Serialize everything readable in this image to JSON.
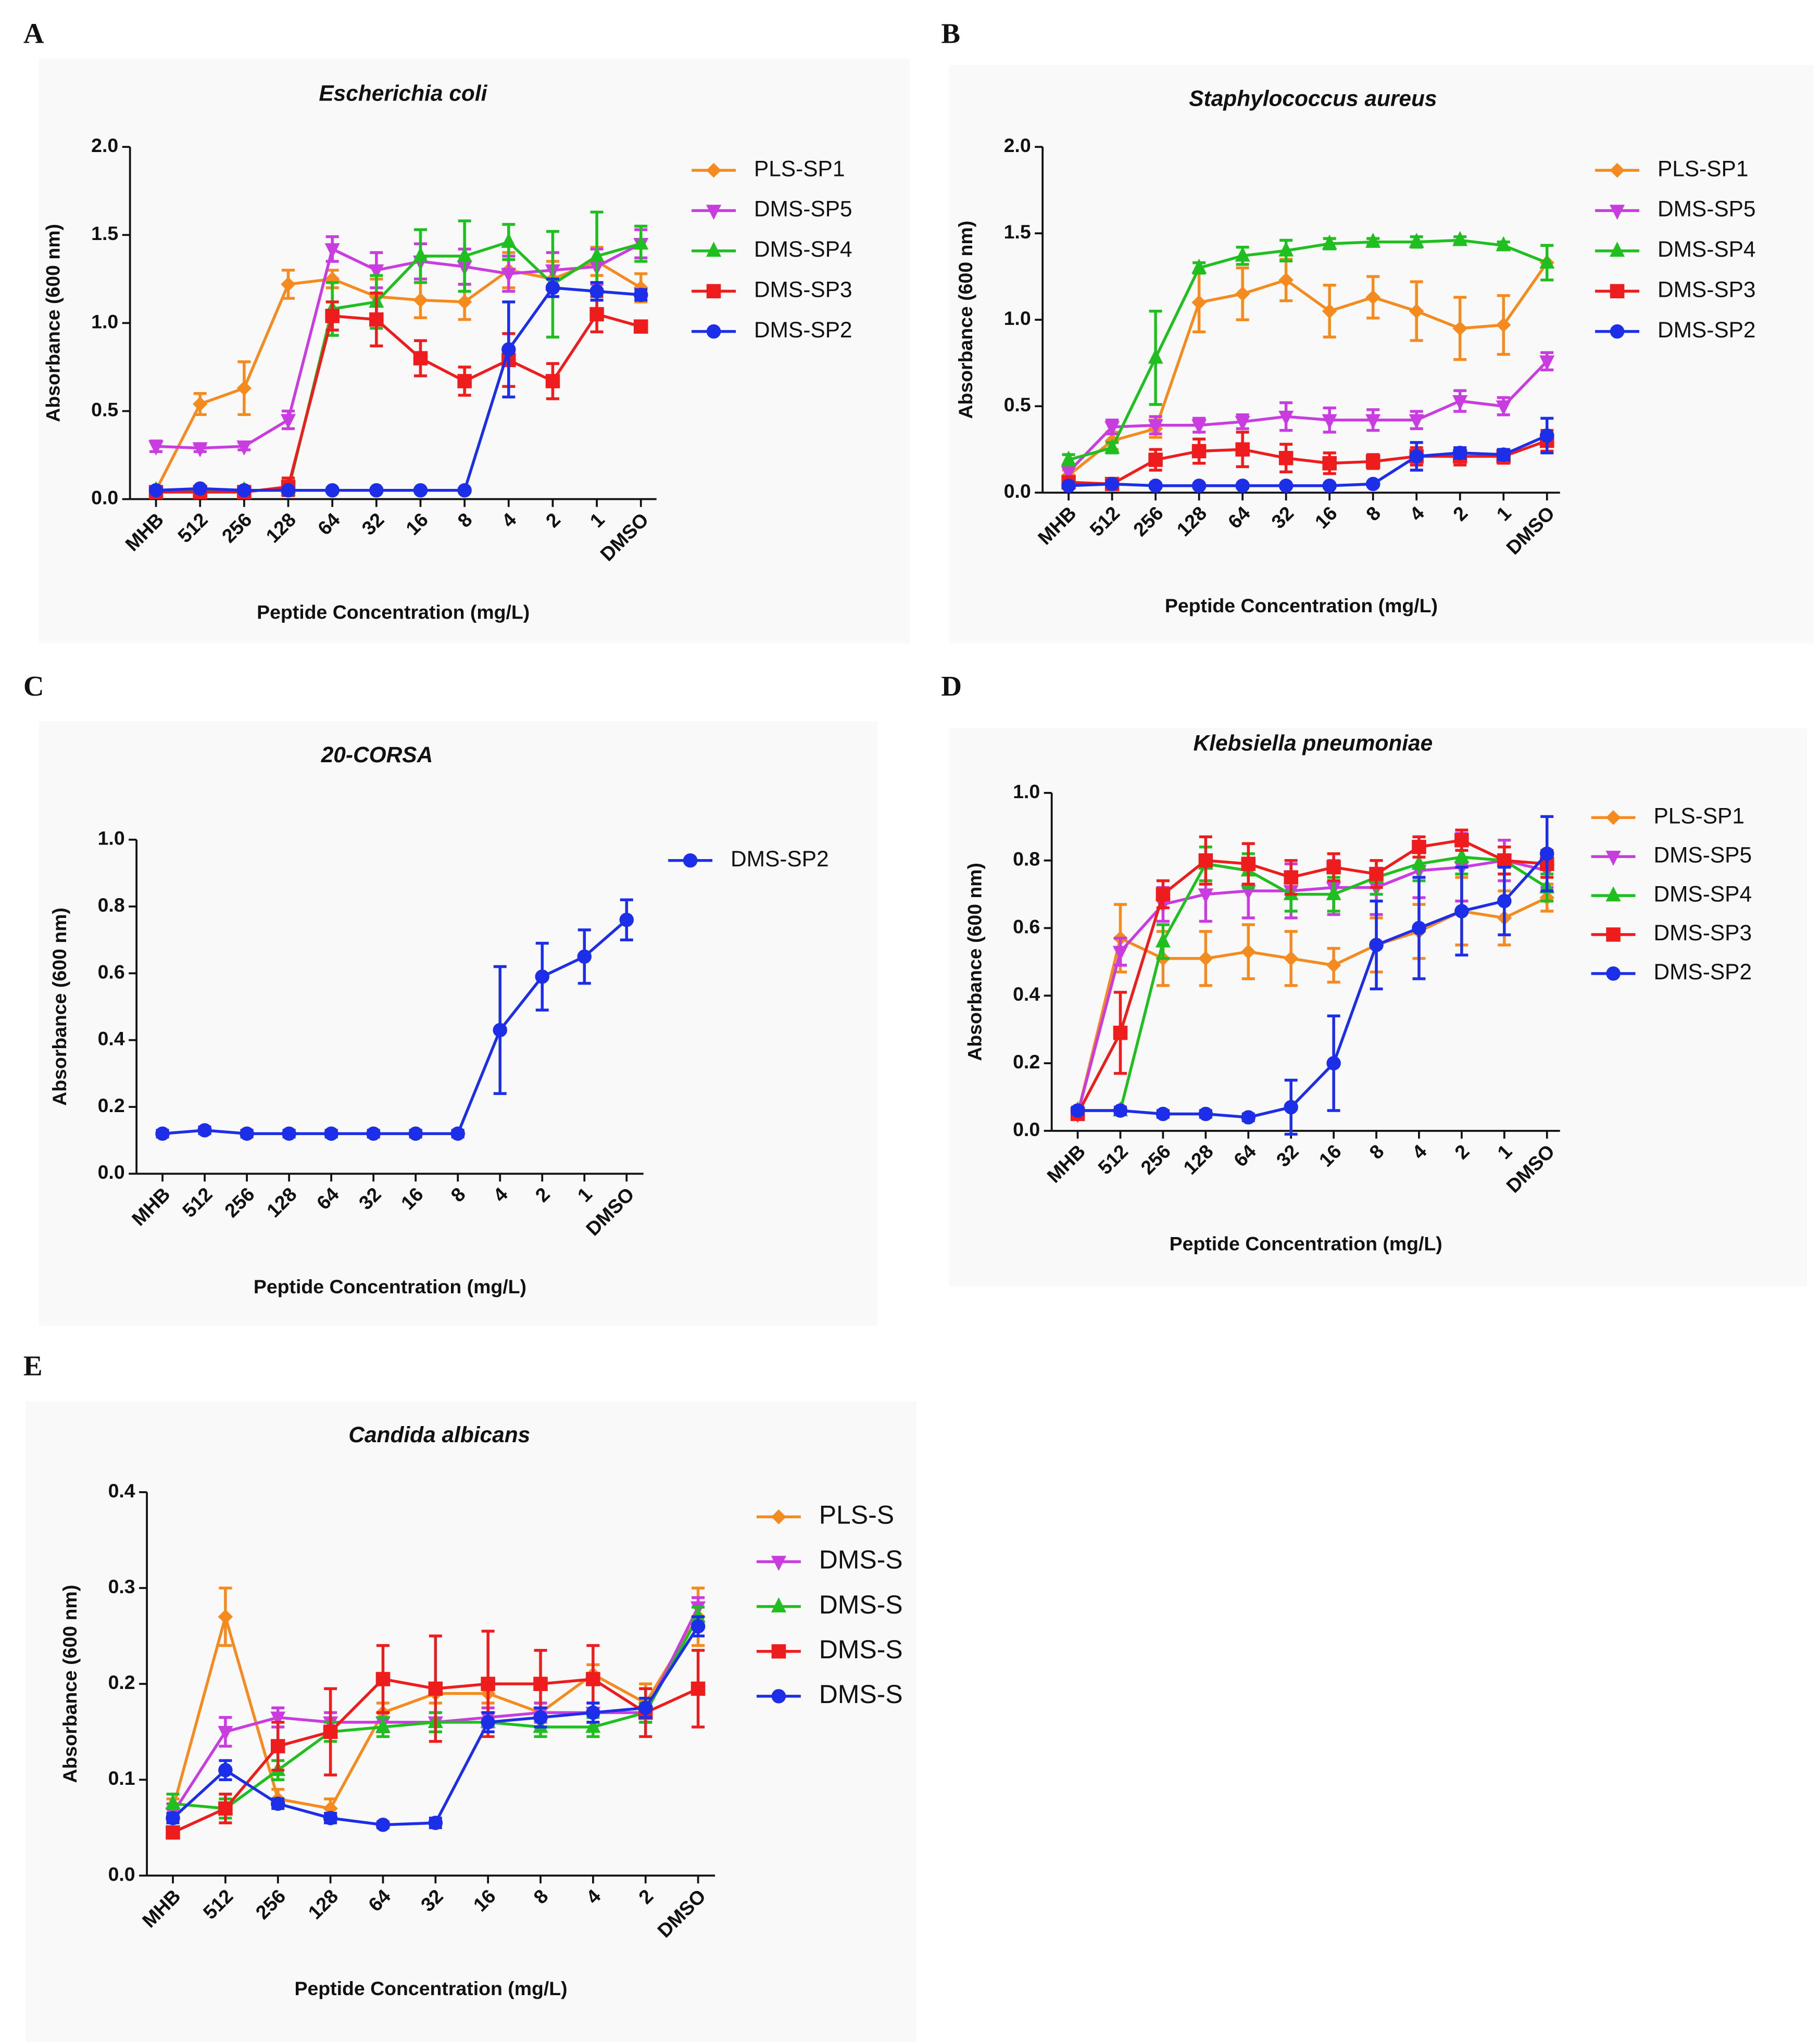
{
  "chart_data": [
    {
      "type": "line",
      "panel_label": "A",
      "title": "Escherichia coli",
      "x_label": "Peptide Concentration (mg/L)",
      "y_label": "Absorbance (600 nm)",
      "categories": [
        "MHB",
        "512",
        "256",
        "128",
        "64",
        "32",
        "16",
        "8",
        "4",
        "2",
        "1",
        "DMSO"
      ],
      "ylim": [
        0,
        2
      ],
      "yticks": [
        {
          "value": 0,
          "label": "0.0"
        },
        0.5,
        {
          "value": 1,
          "label": "1.0"
        },
        1.5,
        {
          "value": 2,
          "label": "2.0"
        }
      ],
      "series": [
        {
          "name": "PLS-SP1",
          "color": "#f58a1f",
          "marker": "diamond",
          "values": [
            0.05,
            0.54,
            0.63,
            1.22,
            1.25,
            1.15,
            1.13,
            1.12,
            1.3,
            1.25,
            1.35,
            1.2
          ],
          "errors": [
            0.02,
            0.06,
            0.15,
            0.08,
            0.05,
            0.1,
            0.1,
            0.1,
            0.1,
            0.1,
            0.08,
            0.08
          ]
        },
        {
          "name": "DMS-SP5",
          "color": "#c93de0",
          "marker": "triangle-down",
          "values": [
            0.3,
            0.29,
            0.3,
            0.45,
            1.42,
            1.3,
            1.35,
            1.32,
            1.28,
            1.3,
            1.32,
            1.45
          ],
          "errors": [
            0.03,
            0.02,
            0.02,
            0.05,
            0.07,
            0.1,
            0.1,
            0.1,
            0.1,
            0.1,
            0.1,
            0.08
          ]
        },
        {
          "name": "DMS-SP4",
          "color": "#1fbf1f",
          "marker": "triangle-up",
          "values": [
            0.05,
            0.05,
            0.05,
            0.05,
            1.08,
            1.12,
            1.38,
            1.38,
            1.46,
            1.22,
            1.38,
            1.45
          ],
          "errors": [
            0.01,
            0.01,
            0.01,
            0.01,
            0.15,
            0.15,
            0.15,
            0.2,
            0.1,
            0.3,
            0.25,
            0.1
          ]
        },
        {
          "name": "DMS-SP3",
          "color": "#ee1c1c",
          "marker": "square",
          "values": [
            0.04,
            0.04,
            0.04,
            0.07,
            1.04,
            1.02,
            0.8,
            0.67,
            0.79,
            0.67,
            1.05,
            0.98
          ],
          "errors": [
            0.01,
            0.01,
            0.01,
            0.05,
            0.08,
            0.15,
            0.1,
            0.08,
            0.15,
            0.1,
            0.1,
            0.03
          ]
        },
        {
          "name": "DMS-SP2",
          "color": "#1c2ee8",
          "marker": "circle",
          "values": [
            0.05,
            0.06,
            0.05,
            0.05,
            0.05,
            0.05,
            0.05,
            0.05,
            0.85,
            1.2,
            1.18,
            1.16
          ],
          "errors": [
            0.01,
            0.01,
            0.01,
            0.01,
            0.01,
            0.01,
            0.01,
            0.01,
            0.27,
            0.05,
            0.05,
            0.03
          ]
        }
      ]
    },
    {
      "type": "line",
      "panel_label": "B",
      "title": "Staphylococcus aureus",
      "x_label": "Peptide Concentration (mg/L)",
      "y_label": "Absorbance (600 nm)",
      "categories": [
        "MHB",
        "512",
        "256",
        "128",
        "64",
        "32",
        "16",
        "8",
        "4",
        "2",
        "1",
        "DMSO"
      ],
      "ylim": [
        0,
        2
      ],
      "yticks": [
        {
          "value": 0,
          "label": "0.0"
        },
        0.5,
        {
          "value": 1,
          "label": "1.0"
        },
        1.5,
        {
          "value": 2,
          "label": "2.0"
        }
      ],
      "series": [
        {
          "name": "PLS-SP1",
          "color": "#f58a1f",
          "marker": "diamond",
          "values": [
            0.1,
            0.3,
            0.37,
            1.1,
            1.15,
            1.23,
            1.05,
            1.13,
            1.05,
            0.95,
            0.97,
            1.33
          ],
          "errors": [
            0.03,
            0.05,
            0.05,
            0.17,
            0.15,
            0.12,
            0.15,
            0.12,
            0.17,
            0.18,
            0.17,
            0.1
          ]
        },
        {
          "name": "DMS-SP5",
          "color": "#c93de0",
          "marker": "triangle-down",
          "values": [
            0.12,
            0.38,
            0.39,
            0.39,
            0.41,
            0.44,
            0.42,
            0.42,
            0.42,
            0.53,
            0.5,
            0.76
          ],
          "errors": [
            0.03,
            0.04,
            0.05,
            0.04,
            0.04,
            0.08,
            0.07,
            0.06,
            0.05,
            0.06,
            0.05,
            0.05
          ]
        },
        {
          "name": "DMS-SP4",
          "color": "#1fbf1f",
          "marker": "triangle-up",
          "values": [
            0.19,
            0.26,
            0.78,
            1.3,
            1.37,
            1.4,
            1.44,
            1.45,
            1.45,
            1.46,
            1.43,
            1.33
          ],
          "errors": [
            0.03,
            0.03,
            0.27,
            0.03,
            0.05,
            0.06,
            0.03,
            0.02,
            0.03,
            0.02,
            0.02,
            0.1
          ]
        },
        {
          "name": "DMS-SP3",
          "color": "#ee1c1c",
          "marker": "square",
          "values": [
            0.06,
            0.05,
            0.19,
            0.24,
            0.25,
            0.2,
            0.17,
            0.18,
            0.21,
            0.21,
            0.21,
            0.3
          ],
          "errors": [
            0.02,
            0.01,
            0.06,
            0.07,
            0.1,
            0.08,
            0.06,
            0.04,
            0.05,
            0.05,
            0.04,
            0.06
          ]
        },
        {
          "name": "DMS-SP2",
          "color": "#1c2ee8",
          "marker": "circle",
          "values": [
            0.04,
            0.05,
            0.04,
            0.04,
            0.04,
            0.04,
            0.04,
            0.05,
            0.21,
            0.23,
            0.22,
            0.33
          ],
          "errors": [
            0.01,
            0.01,
            0.01,
            0.01,
            0.01,
            0.01,
            0.01,
            0.01,
            0.08,
            0.03,
            0.03,
            0.1
          ]
        }
      ]
    },
    {
      "type": "line",
      "panel_label": "C",
      "title": "20-CORSA",
      "x_label": "Peptide Concentration (mg/L)",
      "y_label": "Absorbance (600 nm)",
      "categories": [
        "MHB",
        "512",
        "256",
        "128",
        "64",
        "32",
        "16",
        "8",
        "4",
        "2",
        "1",
        "DMSO"
      ],
      "ylim": [
        0,
        1
      ],
      "yticks": [
        {
          "value": 0,
          "label": "0.0"
        },
        0.2,
        0.4,
        0.6,
        0.8,
        {
          "value": 1,
          "label": "1.0"
        }
      ],
      "series": [
        {
          "name": "DMS-SP2",
          "color": "#1c2ee8",
          "marker": "circle",
          "values": [
            0.12,
            0.13,
            0.12,
            0.12,
            0.12,
            0.12,
            0.12,
            0.12,
            0.43,
            0.59,
            0.65,
            0.76
          ],
          "errors": [
            0.01,
            0.01,
            0.01,
            0.01,
            0.01,
            0.01,
            0.01,
            0.01,
            0.19,
            0.1,
            0.08,
            0.06
          ]
        }
      ]
    },
    {
      "type": "line",
      "panel_label": "D",
      "title": "Klebsiella pneumoniae",
      "x_label": "Peptide Concentration (mg/L)",
      "y_label": "Absorbance (600 nm)",
      "categories": [
        "MHB",
        "512",
        "256",
        "128",
        "64",
        "32",
        "16",
        "8",
        "4",
        "2",
        "1",
        "DMSO"
      ],
      "ylim": [
        0,
        1
      ],
      "yticks": [
        {
          "value": 0,
          "label": "0.0"
        },
        0.2,
        0.4,
        0.6,
        0.8,
        {
          "value": 1,
          "label": "1.0"
        }
      ],
      "series": [
        {
          "name": "PLS-SP1",
          "color": "#f58a1f",
          "marker": "diamond",
          "values": [
            0.05,
            0.57,
            0.51,
            0.51,
            0.53,
            0.51,
            0.49,
            0.55,
            0.59,
            0.65,
            0.63,
            0.69
          ],
          "errors": [
            0.01,
            0.1,
            0.08,
            0.08,
            0.08,
            0.08,
            0.05,
            0.08,
            0.08,
            0.1,
            0.08,
            0.04
          ]
        },
        {
          "name": "DMS-SP5",
          "color": "#c93de0",
          "marker": "triangle-down",
          "values": [
            0.05,
            0.53,
            0.67,
            0.7,
            0.71,
            0.71,
            0.72,
            0.72,
            0.77,
            0.78,
            0.8,
            0.77
          ],
          "errors": [
            0.01,
            0.04,
            0.05,
            0.08,
            0.08,
            0.08,
            0.08,
            0.08,
            0.08,
            0.1,
            0.06,
            0.05
          ]
        },
        {
          "name": "DMS-SP4",
          "color": "#1fbf1f",
          "marker": "triangle-up",
          "values": [
            0.06,
            0.06,
            0.56,
            0.79,
            0.77,
            0.7,
            0.7,
            0.75,
            0.79,
            0.81,
            0.8,
            0.72
          ],
          "errors": [
            0.01,
            0.01,
            0.05,
            0.05,
            0.05,
            0.05,
            0.05,
            0.05,
            0.05,
            0.05,
            0.04,
            0.04
          ]
        },
        {
          "name": "DMS-SP3",
          "color": "#ee1c1c",
          "marker": "square",
          "values": [
            0.05,
            0.29,
            0.7,
            0.8,
            0.79,
            0.75,
            0.78,
            0.76,
            0.84,
            0.86,
            0.8,
            0.79
          ],
          "errors": [
            0.01,
            0.12,
            0.04,
            0.07,
            0.06,
            0.05,
            0.04,
            0.04,
            0.03,
            0.03,
            0.04,
            0.04
          ]
        },
        {
          "name": "DMS-SP2",
          "color": "#1c2ee8",
          "marker": "circle",
          "values": [
            0.06,
            0.06,
            0.05,
            0.05,
            0.04,
            0.07,
            0.2,
            0.55,
            0.6,
            0.65,
            0.68,
            0.82
          ],
          "errors": [
            0.01,
            0.01,
            0.01,
            0.01,
            0.01,
            0.08,
            0.14,
            0.13,
            0.15,
            0.13,
            0.1,
            0.11
          ]
        }
      ]
    },
    {
      "type": "line",
      "panel_label": "E",
      "title": "Candida albicans",
      "x_label": "Peptide Concentration (mg/L)",
      "y_label": "Absorbance (600 nm)",
      "categories": [
        "MHB",
        "512",
        "256",
        "128",
        "64",
        "32",
        "16",
        "8",
        "4",
        "2",
        "DMSO"
      ],
      "ylim": [
        0,
        0.4
      ],
      "yticks": [
        {
          "value": 0,
          "label": "0.0"
        },
        0.1,
        0.2,
        0.3,
        0.4
      ],
      "series": [
        {
          "name": "PLS-S",
          "color": "#f58a1f",
          "marker": "diamond",
          "values": [
            0.07,
            0.27,
            0.08,
            0.07,
            0.17,
            0.19,
            0.19,
            0.17,
            0.21,
            0.18,
            0.27
          ],
          "errors": [
            0.01,
            0.03,
            0.01,
            0.01,
            0.01,
            0.01,
            0.01,
            0.01,
            0.01,
            0.02,
            0.03
          ]
        },
        {
          "name": "DMS-S",
          "color": "#c93de0",
          "marker": "triangle-down",
          "values": [
            0.065,
            0.15,
            0.165,
            0.16,
            0.16,
            0.16,
            0.165,
            0.17,
            0.17,
            0.17,
            0.28
          ],
          "errors": [
            0.01,
            0.015,
            0.01,
            0.01,
            0.01,
            0.01,
            0.01,
            0.01,
            0.01,
            0.01,
            0.01
          ]
        },
        {
          "name": "DMS-S",
          "color": "#1fbf1f",
          "marker": "triangle-up",
          "values": [
            0.075,
            0.07,
            0.11,
            0.15,
            0.155,
            0.16,
            0.16,
            0.155,
            0.155,
            0.17,
            0.27
          ],
          "errors": [
            0.01,
            0.01,
            0.01,
            0.01,
            0.01,
            0.01,
            0.01,
            0.01,
            0.01,
            0.01,
            0.01
          ]
        },
        {
          "name": "DMS-S",
          "color": "#ee1c1c",
          "marker": "square",
          "values": [
            0.045,
            0.07,
            0.135,
            0.15,
            0.205,
            0.195,
            0.2,
            0.2,
            0.205,
            0.17,
            0.195
          ],
          "errors": [
            0.005,
            0.015,
            0.025,
            0.045,
            0.035,
            0.055,
            0.055,
            0.035,
            0.035,
            0.025,
            0.04
          ]
        },
        {
          "name": "DMS-S",
          "color": "#1c2ee8",
          "marker": "circle",
          "values": [
            0.06,
            0.11,
            0.075,
            0.06,
            0.053,
            0.055,
            0.16,
            0.165,
            0.17,
            0.175,
            0.26
          ],
          "errors": [
            0.005,
            0.01,
            0.005,
            0.005,
            0.003,
            0.005,
            0.01,
            0.01,
            0.01,
            0.01,
            0.01
          ]
        }
      ]
    }
  ]
}
